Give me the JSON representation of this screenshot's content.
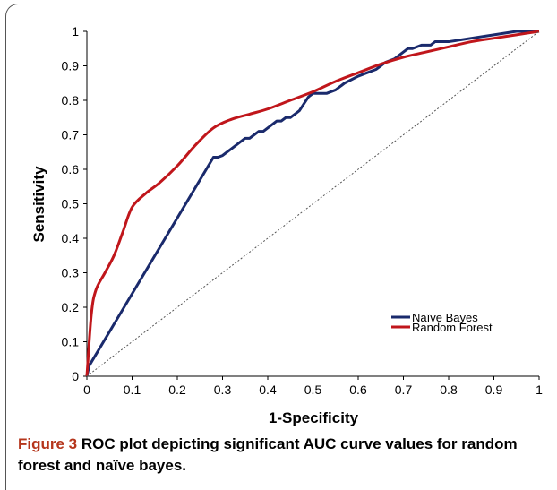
{
  "caption": {
    "label": "Figure 3",
    "text": " ROC plot depicting significant AUC curve values for random forest and naïve bayes."
  },
  "chart_data": {
    "type": "line",
    "title": "",
    "xlabel": "1-Specificity",
    "ylabel": "Sensitivity",
    "xlim": [
      0,
      1
    ],
    "ylim": [
      0,
      1
    ],
    "xticks": [
      "0",
      "0.1",
      "0.2",
      "0.3",
      "0.4",
      "0.5",
      "0.6",
      "0.7",
      "0.8",
      "0.9",
      "1"
    ],
    "yticks": [
      "0",
      "0.1",
      "0.2",
      "0.3",
      "0.4",
      "0.5",
      "0.6",
      "0.7",
      "0.8",
      "0.9",
      "1"
    ],
    "grid": false,
    "legend_position": "bottom-right",
    "series": [
      {
        "name": "Naïve Bayes",
        "color": "#1a2a6c",
        "style": "solid",
        "x": [
          0,
          0.005,
          0.28,
          0.29,
          0.3,
          0.31,
          0.32,
          0.33,
          0.34,
          0.35,
          0.36,
          0.37,
          0.38,
          0.39,
          0.4,
          0.41,
          0.42,
          0.43,
          0.44,
          0.45,
          0.46,
          0.47,
          0.48,
          0.49,
          0.5,
          0.52,
          0.53,
          0.55,
          0.57,
          0.6,
          0.62,
          0.64,
          0.65,
          0.66,
          0.68,
          0.7,
          0.71,
          0.72,
          0.74,
          0.76,
          0.77,
          0.8,
          0.85,
          0.9,
          0.95,
          1.0
        ],
        "y": [
          0,
          0.03,
          0.635,
          0.635,
          0.64,
          0.65,
          0.66,
          0.67,
          0.68,
          0.69,
          0.69,
          0.7,
          0.71,
          0.71,
          0.72,
          0.73,
          0.74,
          0.74,
          0.75,
          0.75,
          0.76,
          0.77,
          0.79,
          0.81,
          0.82,
          0.82,
          0.82,
          0.83,
          0.85,
          0.87,
          0.88,
          0.89,
          0.9,
          0.91,
          0.92,
          0.94,
          0.95,
          0.95,
          0.96,
          0.96,
          0.97,
          0.97,
          0.98,
          0.99,
          1.0,
          1.0
        ]
      },
      {
        "name": "Random Forest",
        "color": "#c0161b",
        "style": "solid",
        "x": [
          0,
          0.01,
          0.02,
          0.04,
          0.06,
          0.08,
          0.1,
          0.13,
          0.16,
          0.2,
          0.24,
          0.28,
          0.32,
          0.36,
          0.4,
          0.45,
          0.5,
          0.55,
          0.6,
          0.65,
          0.7,
          0.75,
          0.8,
          0.85,
          0.9,
          0.95,
          1.0
        ],
        "y": [
          0,
          0.18,
          0.25,
          0.3,
          0.35,
          0.42,
          0.49,
          0.53,
          0.56,
          0.61,
          0.67,
          0.72,
          0.745,
          0.76,
          0.775,
          0.8,
          0.825,
          0.855,
          0.88,
          0.905,
          0.925,
          0.94,
          0.955,
          0.97,
          0.98,
          0.99,
          1.0
        ]
      },
      {
        "name": "",
        "color": "#555555",
        "style": "dotted",
        "x": [
          0,
          1
        ],
        "y": [
          0,
          1
        ]
      }
    ]
  }
}
